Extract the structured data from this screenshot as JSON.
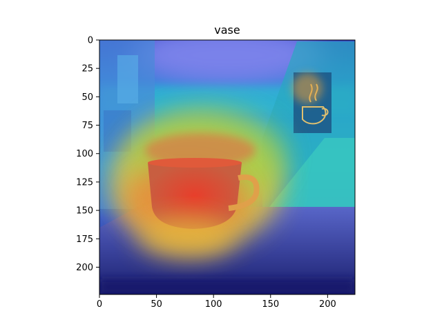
{
  "chart_data": {
    "type": "heatmap",
    "title": "vase",
    "xlabel": "",
    "ylabel": "",
    "xlim": [
      0,
      224
    ],
    "ylim": [
      224,
      0
    ],
    "xticks": [
      0,
      50,
      100,
      150,
      200
    ],
    "yticks": [
      0,
      25,
      50,
      75,
      100,
      125,
      150,
      175,
      200
    ],
    "grid": false,
    "colormap": "jet",
    "hotspots": [
      {
        "x": 72,
        "y": 150,
        "intensity": 1.0
      },
      {
        "x": 60,
        "y": 130,
        "intensity": 0.9
      },
      {
        "x": 110,
        "y": 130,
        "intensity": 0.72
      },
      {
        "x": 80,
        "y": 103,
        "intensity": 0.65
      },
      {
        "x": 40,
        "y": 115,
        "intensity": 0.55
      },
      {
        "x": 140,
        "y": 115,
        "intensity": 0.45
      },
      {
        "x": 75,
        "y": 180,
        "intensity": 0.5
      },
      {
        "x": 180,
        "y": 45,
        "intensity": 0.5
      }
    ]
  },
  "colors": {
    "low": "#1e2396",
    "mid": "#28c8d2",
    "high": "#e0362b",
    "table_top": "#4a55b8",
    "sky": "#6f78e0"
  }
}
